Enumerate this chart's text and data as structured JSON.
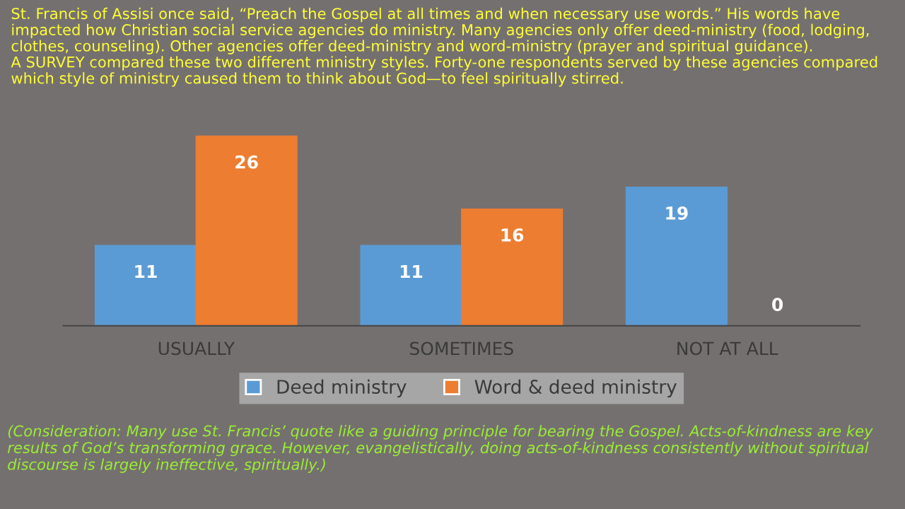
{
  "chart_data": {
    "type": "bar",
    "title": "St. Francis of Assisi once said, “Preach the Gospel at all times and when necessary use words.” His words have impacted how Christian social service agencies do ministry. Many agencies only offer deed-ministry (food, lodging, clothes, counseling). Other agencies offer deed-ministry and word-ministry (prayer and spiritual guidance).\nA SURVEY compared these two different ministry styles. Forty-one respondents served by these agencies compared which style of ministry caused them to think about God—to feel spiritually stirred.",
    "categories": [
      "USUALLY",
      "SOMETIMES",
      "NOT AT ALL"
    ],
    "series": [
      {
        "name": "Deed ministry",
        "color": "#5b9bd5",
        "values": [
          11,
          11,
          19
        ]
      },
      {
        "name": "Word & deed ministry",
        "color": "#ed7d31",
        "values": [
          26,
          16,
          0
        ]
      }
    ],
    "data_labels": true,
    "legend": "bottom",
    "annotations": [
      "(Consideration: Many use St. Francis’ quote like a guiding principle for bearing the Gospel. Acts-of-kindness are key results of God’s transforming grace. However, evangelistically, doing acts-of-kindness consistently without spiritual discourse is largely ineffective, spiritually.)"
    ]
  }
}
